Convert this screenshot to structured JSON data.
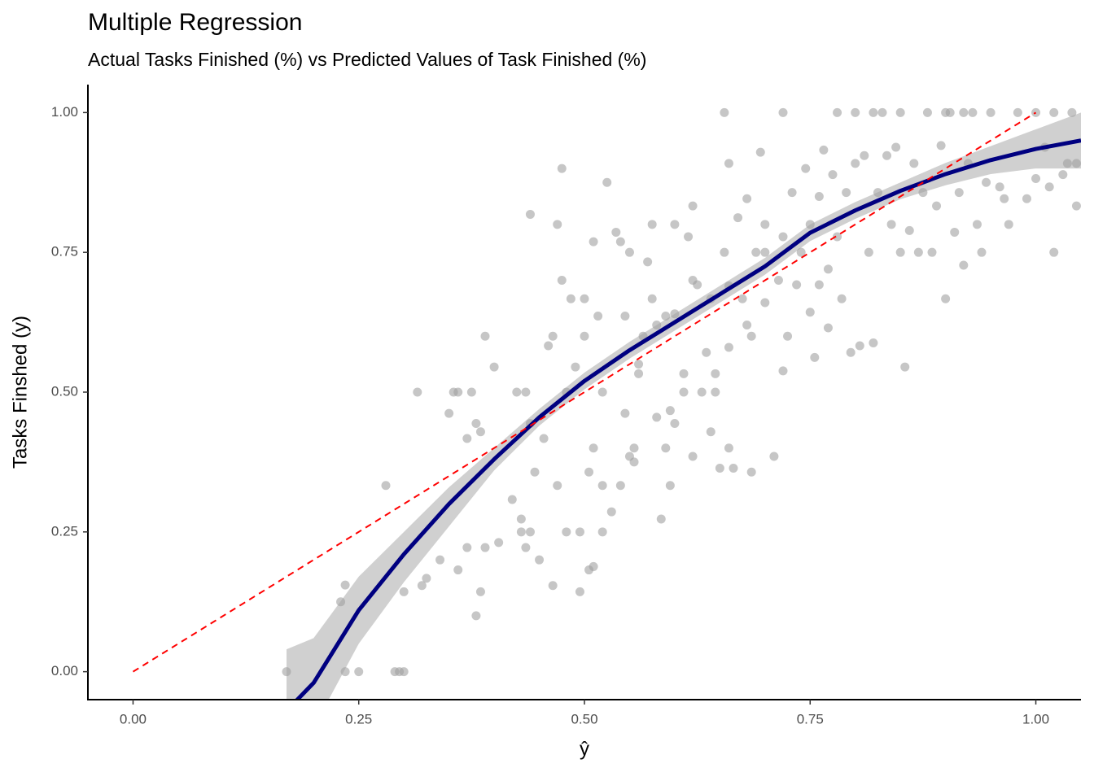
{
  "chart_data": {
    "type": "scatter",
    "title": "Multiple Regression",
    "subtitle": "Actual Tasks Finished (%) vs Predicted Values of Task Finished (%)",
    "x_label": "ŷ",
    "y_label": "Tasks Finshed (y)",
    "xlim": [
      -0.05,
      1.05
    ],
    "ylim": [
      -0.05,
      1.05
    ],
    "xticks": [
      {
        "value": 0,
        "label": "0.00"
      },
      {
        "value": 0.25,
        "label": "0.25"
      },
      {
        "value": 0.5,
        "label": "0.50"
      },
      {
        "value": 0.75,
        "label": "0.75"
      },
      {
        "value": 1,
        "label": "1.00"
      }
    ],
    "yticks": [
      {
        "value": 0,
        "label": "0.00"
      },
      {
        "value": 0.25,
        "label": "0.25"
      },
      {
        "value": 0.5,
        "label": "0.50"
      },
      {
        "value": 0.75,
        "label": "0.75"
      },
      {
        "value": 1,
        "label": "1.00"
      }
    ],
    "grid": false,
    "points": {
      "color": "#a0a0a0",
      "x": [
        0.17,
        0.23,
        0.235,
        0.235,
        0.25,
        0.28,
        0.29,
        0.295,
        0.3,
        0.3,
        0.315,
        0.32,
        0.325,
        0.34,
        0.35,
        0.355,
        0.36,
        0.36,
        0.37,
        0.37,
        0.375,
        0.38,
        0.385,
        0.38,
        0.385,
        0.39,
        0.39,
        0.4,
        0.405,
        0.42,
        0.425,
        0.43,
        0.43,
        0.435,
        0.435,
        0.44,
        0.44,
        0.44,
        0.445,
        0.45,
        0.455,
        0.46,
        0.465,
        0.465,
        0.47,
        0.47,
        0.475,
        0.475,
        0.48,
        0.48,
        0.485,
        0.49,
        0.495,
        0.495,
        0.5,
        0.5,
        0.505,
        0.505,
        0.51,
        0.51,
        0.51,
        0.515,
        0.52,
        0.52,
        0.52,
        0.525,
        0.53,
        0.535,
        0.54,
        0.54,
        0.545,
        0.545,
        0.55,
        0.55,
        0.555,
        0.555,
        0.56,
        0.565,
        0.57,
        0.575,
        0.575,
        0.58,
        0.585,
        0.59,
        0.59,
        0.595,
        0.595,
        0.6,
        0.6,
        0.61,
        0.61,
        0.615,
        0.62,
        0.62,
        0.625,
        0.63,
        0.635,
        0.64,
        0.64,
        0.645,
        0.645,
        0.65,
        0.655,
        0.66,
        0.66,
        0.665,
        0.67,
        0.675,
        0.68,
        0.685,
        0.685,
        0.69,
        0.695,
        0.7,
        0.71,
        0.715,
        0.72,
        0.725,
        0.73,
        0.735,
        0.74,
        0.745,
        0.75,
        0.755,
        0.76,
        0.765,
        0.77,
        0.775,
        0.78,
        0.785,
        0.79,
        0.795,
        0.8,
        0.805,
        0.81,
        0.815,
        0.82,
        0.825,
        0.83,
        0.835,
        0.84,
        0.845,
        0.85,
        0.855,
        0.86,
        0.865,
        0.87,
        0.875,
        0.88,
        0.885,
        0.89,
        0.895,
        0.9,
        0.905,
        0.91,
        0.915,
        0.92,
        0.925,
        0.93,
        0.935,
        0.94,
        0.945,
        0.95,
        0.96,
        0.965,
        0.97,
        0.98,
        0.99,
        1.0,
        1.01,
        1.015,
        1.02,
        1.03,
        1.035,
        1.04,
        1.045,
        1.045,
        0.655,
        0.72,
        0.78,
        0.8,
        0.82,
        0.85,
        0.9,
        0.92,
        1.0,
        1.02,
        0.75,
        0.76,
        0.7,
        0.72,
        0.77,
        0.6,
        0.58,
        0.66,
        0.7,
        0.62,
        0.56,
        0.68,
        0.66
      ],
      "y": [
        0,
        0.125,
        0.155,
        0,
        0,
        0.333,
        0,
        0,
        0,
        0.143,
        0.5,
        0.154,
        0.167,
        0.2,
        0.462,
        0.5,
        0.182,
        0.5,
        0.417,
        0.222,
        0.5,
        0.444,
        0.429,
        0.1,
        0.143,
        0.6,
        0.222,
        0.545,
        0.231,
        0.308,
        0.5,
        0.25,
        0.273,
        0.222,
        0.5,
        0.818,
        0.444,
        0.25,
        0.357,
        0.2,
        0.417,
        0.583,
        0.6,
        0.154,
        0.8,
        0.333,
        0.7,
        0.9,
        0.25,
        0.5,
        0.667,
        0.545,
        0.25,
        0.143,
        0.6,
        0.667,
        0.182,
        0.357,
        0.4,
        0.769,
        0.188,
        0.636,
        0.333,
        0.25,
        0.5,
        0.875,
        0.286,
        0.786,
        0.769,
        0.333,
        0.462,
        0.636,
        0.385,
        0.75,
        0.4,
        0.375,
        0.533,
        0.6,
        0.733,
        0.8,
        0.667,
        0.455,
        0.273,
        0.4,
        0.636,
        0.467,
        0.333,
        0.444,
        0.8,
        0.533,
        0.5,
        0.778,
        0.385,
        0.833,
        0.692,
        0.5,
        0.571,
        0.429,
        0.667,
        0.533,
        0.5,
        0.364,
        0.75,
        0.4,
        0.909,
        0.364,
        0.812,
        0.667,
        0.846,
        0.357,
        0.6,
        0.75,
        0.929,
        0.8,
        0.385,
        0.7,
        0.538,
        0.6,
        0.857,
        0.692,
        0.75,
        0.9,
        0.643,
        0.562,
        0.692,
        0.933,
        0.615,
        0.889,
        0.778,
        0.667,
        0.857,
        0.571,
        0.909,
        0.583,
        0.923,
        0.75,
        0.588,
        0.857,
        1,
        0.923,
        0.8,
        0.938,
        0.75,
        0.545,
        0.789,
        0.909,
        0.75,
        0.857,
        1,
        0.75,
        0.833,
        0.941,
        0.667,
        1,
        0.786,
        0.857,
        0.727,
        0.909,
        1,
        0.8,
        0.75,
        0.875,
        1,
        0.867,
        0.846,
        0.8,
        1,
        0.846,
        0.882,
        0.938,
        0.867,
        0.75,
        0.889,
        0.909,
        1,
        0.833,
        0.909,
        1,
        1,
        1,
        1,
        1,
        1,
        1,
        1,
        1,
        1,
        0.8,
        0.85,
        0.75,
        0.778,
        0.72,
        0.64,
        0.62,
        0.58,
        0.66,
        0.7,
        0.55,
        0.62,
        0.69
      ]
    },
    "fit": {
      "color": "#000080",
      "band_color": "#d0d0d0",
      "x": [
        0.17,
        0.2,
        0.25,
        0.3,
        0.35,
        0.4,
        0.45,
        0.5,
        0.55,
        0.6,
        0.65,
        0.7,
        0.75,
        0.8,
        0.85,
        0.9,
        0.95,
        1.0,
        1.05
      ],
      "y": [
        -0.07,
        -0.02,
        0.11,
        0.21,
        0.3,
        0.38,
        0.455,
        0.52,
        0.575,
        0.625,
        0.675,
        0.725,
        0.785,
        0.825,
        0.86,
        0.89,
        0.915,
        0.935,
        0.95
      ],
      "lower": [
        -0.18,
        -0.1,
        0.05,
        0.16,
        0.26,
        0.36,
        0.44,
        0.505,
        0.56,
        0.61,
        0.66,
        0.71,
        0.77,
        0.81,
        0.845,
        0.87,
        0.89,
        0.9,
        0.9
      ],
      "upper": [
        0.04,
        0.06,
        0.17,
        0.25,
        0.33,
        0.4,
        0.47,
        0.535,
        0.59,
        0.64,
        0.69,
        0.74,
        0.8,
        0.84,
        0.875,
        0.91,
        0.94,
        0.97,
        1.0
      ]
    },
    "reference": {
      "color": "#ff0000",
      "dashed": true,
      "x": [
        0,
        1
      ],
      "y": [
        0,
        1
      ]
    }
  }
}
